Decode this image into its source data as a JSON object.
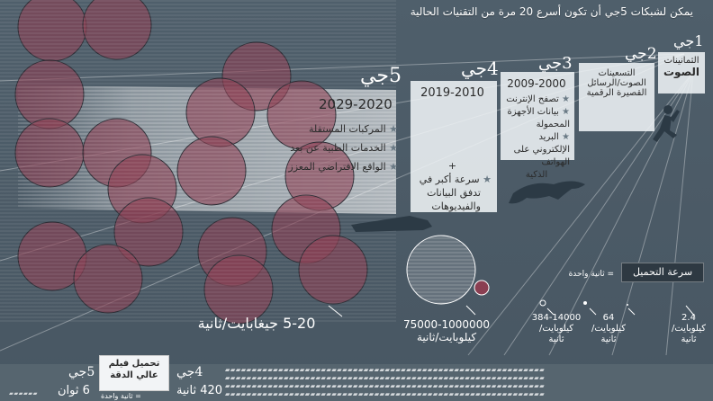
{
  "header": {
    "title": "يمكن لشبكات 5جي أن تكون أسرع 20 مرة من التقنيات الحالية"
  },
  "generations": [
    {
      "id": "1g",
      "label": "1جي",
      "era": "الثمانينات",
      "feature": "الصوت"
    },
    {
      "id": "2g",
      "label": "2جي",
      "era": "التسعينات",
      "features": [
        "الصوت/الرسائل",
        "القصيرة الرقمية"
      ]
    },
    {
      "id": "3g",
      "label": "3جي",
      "era": "2009-2000",
      "features": [
        "تصفح الإنترنت",
        "بيانات الأجهزة المحمولة",
        "البريد الإلكتروني على الهواتف",
        "الذكية"
      ]
    },
    {
      "id": "4g",
      "label": "4جي",
      "era": "2019-2010",
      "plus": "+",
      "features": [
        "سرعة أكبر في",
        "تدفق البيانات",
        "والفيديوهات"
      ]
    },
    {
      "id": "5g",
      "label": "5جي",
      "era": "2029-2020",
      "features": [
        "المركبات المستقلة",
        "الخدمات الطبية عن بعد",
        "الواقع الافتراضي المعزز"
      ]
    }
  ],
  "speeds": {
    "title": "سرعة التحميل",
    "legend": "= ثانية واحدة",
    "items": [
      {
        "id": "1g",
        "value": "2.4",
        "unit_line1": "كيلوبايت/",
        "unit_line2": "ثانية"
      },
      {
        "id": "2g",
        "value": "64",
        "unit_line1": "كيلوبايت/",
        "unit_line2": "ثانية"
      },
      {
        "id": "3g",
        "value": "384-14000",
        "unit_line1": "كيلوبايت/",
        "unit_line2": "ثانية"
      },
      {
        "id": "4g",
        "value": "75000-1000000",
        "unit_line1": "كيلوبايت/ثانية",
        "unit_line2": ""
      },
      {
        "id": "5g",
        "value": "5-20 جيغابايت/ثانية",
        "unit_line1": "",
        "unit_line2": ""
      }
    ]
  },
  "bottom": {
    "hd_title": "تحميل فيلم",
    "hd_title2": "عالي الدقة",
    "legend": "= ثانية واحدة",
    "g5_label": "5جي",
    "g5_time": "6 ثوان",
    "g4_label": "4جي",
    "g4_time": "420 ثانية"
  },
  "colors": {
    "background": "#4b5a66",
    "circle_fill": "#8a3f52",
    "circle_stroke": "#2e2e36",
    "panel": "#eef2f5",
    "accent_red": "#8a3f52"
  }
}
